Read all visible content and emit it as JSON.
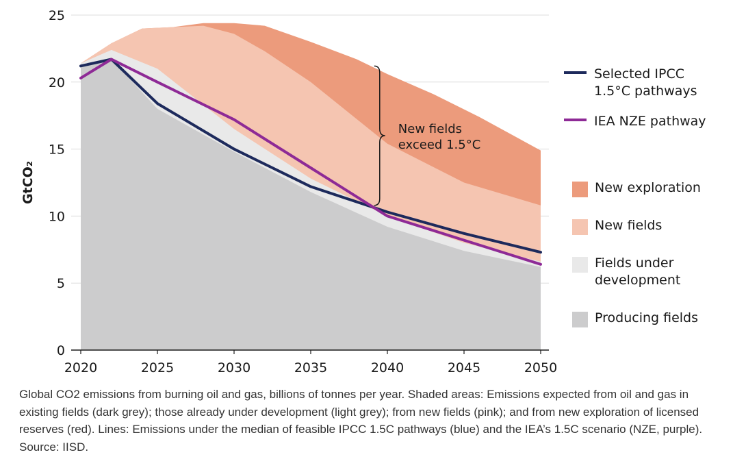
{
  "chart_data": {
    "type": "area",
    "ylabel": "GtCO₂",
    "ylim": [
      0,
      25
    ],
    "xlim": [
      2020,
      2050
    ],
    "x_ticks": [
      "2020",
      "2025",
      "2030",
      "2035",
      "2040",
      "2045",
      "2050"
    ],
    "y_ticks": [
      "0",
      "5",
      "10",
      "15",
      "20",
      "25"
    ],
    "grid": "horizontal",
    "legend_position": "right",
    "stacked_areas_cumulative": [
      {
        "name": "Producing fields",
        "color": "#cccccd",
        "x": [
          2020,
          2022,
          2025,
          2030,
          2035,
          2040,
          2045,
          2050
        ],
        "y": [
          21.2,
          21.7,
          18.0,
          14.8,
          11.8,
          9.2,
          7.4,
          6.2
        ]
      },
      {
        "name": "Fields under development",
        "color": "#e9e9e9",
        "x": [
          2020,
          2022,
          2025,
          2030,
          2035,
          2040,
          2045,
          2050
        ],
        "y": [
          21.4,
          22.4,
          21.0,
          16.5,
          12.8,
          10.0,
          8.0,
          6.6
        ]
      },
      {
        "name": "New fields",
        "color": "#f5c5b1",
        "x": [
          2020,
          2022,
          2024,
          2026,
          2028,
          2030,
          2032,
          2035,
          2040,
          2045,
          2050
        ],
        "y": [
          21.4,
          22.9,
          24.0,
          24.1,
          24.2,
          23.6,
          22.3,
          20.0,
          15.4,
          12.5,
          10.8
        ]
      },
      {
        "name": "New exploration",
        "color": "#ec9b7c",
        "x": [
          2020,
          2022,
          2024,
          2026,
          2028,
          2030,
          2032,
          2035,
          2038,
          2040,
          2043,
          2046,
          2050
        ],
        "y": [
          21.4,
          22.9,
          24.0,
          24.1,
          24.4,
          24.4,
          24.2,
          23.0,
          21.7,
          20.6,
          19.1,
          17.4,
          14.9
        ]
      }
    ],
    "lines": [
      {
        "name": "Selected IPCC 1.5°C pathways",
        "color": "#1d2a5c",
        "x": [
          2020,
          2022,
          2025,
          2030,
          2035,
          2040,
          2045,
          2050
        ],
        "y": [
          21.2,
          21.7,
          18.4,
          15.0,
          12.2,
          10.3,
          8.7,
          7.3
        ]
      },
      {
        "name": "IEA NZE pathway",
        "color": "#8e2a96",
        "x": [
          2020,
          2022,
          2025,
          2030,
          2035,
          2040,
          2045,
          2050
        ],
        "y": [
          20.3,
          21.7,
          20.0,
          17.2,
          13.6,
          10.0,
          8.2,
          6.4
        ]
      }
    ],
    "annotation": {
      "line1": "New fields",
      "line2": "exceed 1.5°C",
      "x": 2039.5,
      "y_from": 10.8,
      "y_to": 21.2
    },
    "legend": [
      {
        "kind": "line",
        "color": "#1d2a5c",
        "lines": [
          "Selected IPCC",
          "1.5°C pathways"
        ]
      },
      {
        "kind": "line",
        "color": "#8e2a96",
        "lines": [
          "IEA NZE pathway"
        ]
      },
      {
        "kind": "box",
        "color": "#ec9b7c",
        "lines": [
          "New exploration"
        ]
      },
      {
        "kind": "box",
        "color": "#f5c5b1",
        "lines": [
          "New fields"
        ]
      },
      {
        "kind": "box",
        "color": "#e9e9e9",
        "lines": [
          "Fields under",
          "development"
        ]
      },
      {
        "kind": "box",
        "color": "#cccccd",
        "lines": [
          "Producing fields"
        ]
      }
    ]
  },
  "caption": "Global CO2 emissions from burning oil and gas, billions of tonnes per year. Shaded areas: Emissions expected from oil and gas in existing fields (dark grey); those already under development (light grey); from new fields (pink); and from new exploration of licensed reserves (red). Lines: Emissions under the median of feasible IPCC 1.5C pathways (blue) and the IEA’s 1.5C scenario (NZE, purple). Source: IISD."
}
